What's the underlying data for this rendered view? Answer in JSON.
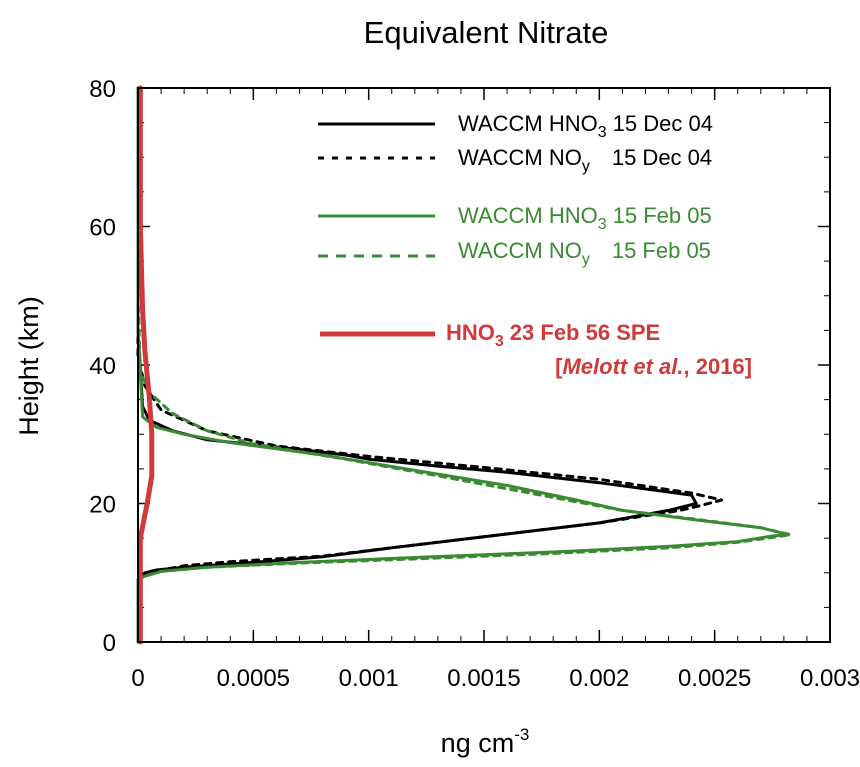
{
  "chart_data": {
    "type": "line",
    "title": "Equivalent Nitrate",
    "ylabel": "Height (km)",
    "xlabel_base": "ng cm",
    "xlabel_exp": "-3",
    "xlim": [
      0,
      0.003
    ],
    "ylim": [
      0,
      80
    ],
    "x_ticks": [
      0,
      0.0005,
      0.001,
      0.0015,
      0.002,
      0.0025,
      0.003
    ],
    "x_tick_labels": [
      "0",
      "0.0005",
      "0.001",
      "0.0015",
      "0.002",
      "0.0025",
      "0.003"
    ],
    "y_ticks": [
      0,
      20,
      40,
      60,
      80
    ],
    "y_tick_labels": [
      "0",
      "20",
      "40",
      "60",
      "80"
    ],
    "legend_position": "top-right",
    "series": [
      {
        "name": "WACCM HNO3 15 Dec 04",
        "legend_main": "WACCM HNO",
        "legend_sub": "3",
        "legend_date": "15 Dec 04",
        "color": "#000000",
        "style": "solid",
        "x": [
          0,
          0,
          1e-05,
          3e-05,
          8e-05,
          0.0002,
          0.0005,
          0.0008,
          0.0011,
          0.0015,
          0.002,
          0.0023,
          0.00242,
          0.0024,
          0.002,
          0.0016,
          0.0013,
          0.001,
          0.0009,
          0.0007,
          0.0005,
          0.0003,
          0.00015,
          5e-05,
          2e-05,
          0,
          0
        ],
        "y": [
          0,
          9,
          9.5,
          10,
          10.4,
          10.8,
          11.5,
          12.3,
          13.6,
          15.2,
          17.2,
          19,
          20,
          21.2,
          23,
          24.5,
          25.4,
          26.4,
          27,
          27.8,
          28.5,
          29.2,
          30.5,
          32,
          34,
          45,
          80
        ]
      },
      {
        "name": "WACCM NOy 15 Dec 04",
        "legend_main": "WACCM NO",
        "legend_sub": "y",
        "legend_date": "15 Dec 04",
        "color": "#000000",
        "style": "dotted",
        "x": [
          0,
          0,
          3e-05,
          0.0001,
          0.0002,
          0.0004,
          0.0008,
          0.0011,
          0.0015,
          0.002,
          0.00235,
          0.00245,
          0.00253,
          0.0024,
          0.002,
          0.0015,
          0.001,
          0.0006,
          0.0003,
          0.0001,
          3e-05,
          0,
          0
        ],
        "y": [
          0,
          9,
          9.8,
          10.4,
          11,
          11.6,
          12.4,
          13.6,
          15.2,
          17.2,
          19,
          19.8,
          20.5,
          21.5,
          23.5,
          25.2,
          26.8,
          28.3,
          30.5,
          33.5,
          37,
          41,
          80
        ]
      },
      {
        "name": "WACCM HNO3 15 Feb 05",
        "legend_main": "WACCM HNO",
        "legend_sub": "3",
        "legend_date": "15 Feb 05",
        "color": "#3a8a34",
        "style": "solid",
        "x": [
          0,
          0,
          3e-05,
          0.0001,
          0.0003,
          0.0007,
          0.0012,
          0.0018,
          0.0023,
          0.0026,
          0.00275,
          0.00282,
          0.0027,
          0.0024,
          0.0021,
          0.0019,
          0.0016,
          0.0012,
          0.0008,
          0.0004,
          0.0002,
          8e-05,
          2e-05,
          0,
          0
        ],
        "y": [
          0,
          9,
          9.5,
          10.2,
          10.8,
          11.5,
          12.2,
          13,
          13.8,
          14.5,
          15.3,
          15.5,
          16.5,
          17.7,
          19,
          20.5,
          22.6,
          24.8,
          27,
          28.8,
          30,
          31,
          32.5,
          45,
          80
        ]
      },
      {
        "name": "WACCM NOy 15 Feb 05",
        "legend_main": "WACCM NO",
        "legend_sub": "y",
        "legend_date": "15 Feb 05",
        "color": "#3a8a34",
        "style": "dotted",
        "x": [
          0,
          0,
          3e-05,
          0.0001,
          0.0003,
          0.0007,
          0.0012,
          0.0018,
          0.0023,
          0.0026,
          0.00275,
          0.00283,
          0.0027,
          0.0024,
          0.0021,
          0.0017,
          0.0013,
          0.0009,
          0.0005,
          0.0003,
          0.00015,
          5e-05,
          1e-05,
          0,
          0
        ],
        "y": [
          0,
          9,
          9.5,
          10.2,
          10.8,
          11.4,
          12,
          12.8,
          13.6,
          14.4,
          15.1,
          15.5,
          16.5,
          17.8,
          19,
          21.5,
          24,
          26.4,
          28.6,
          30.5,
          33,
          36,
          39,
          50,
          80
        ]
      },
      {
        "name": "HNO3 23 Feb 56 SPE",
        "legend_main": "HNO",
        "legend_sub": "3",
        "legend_date": "23 Feb 56 SPE",
        "legend_cite": "[Melott et al., 2016]",
        "legend_cite_open": "[",
        "legend_cite_italic": "Melott et al.",
        "legend_cite_rest": ", 2016]",
        "color": "#d03a3a",
        "style": "solid",
        "x": [
          1e-05,
          1e-05,
          4e-05,
          6e-05,
          6e-05,
          5e-05,
          3e-05,
          2e-05,
          1e-05,
          1e-05
        ],
        "y": [
          0,
          15,
          20,
          24,
          30,
          35,
          42,
          48,
          60,
          80
        ]
      }
    ]
  }
}
